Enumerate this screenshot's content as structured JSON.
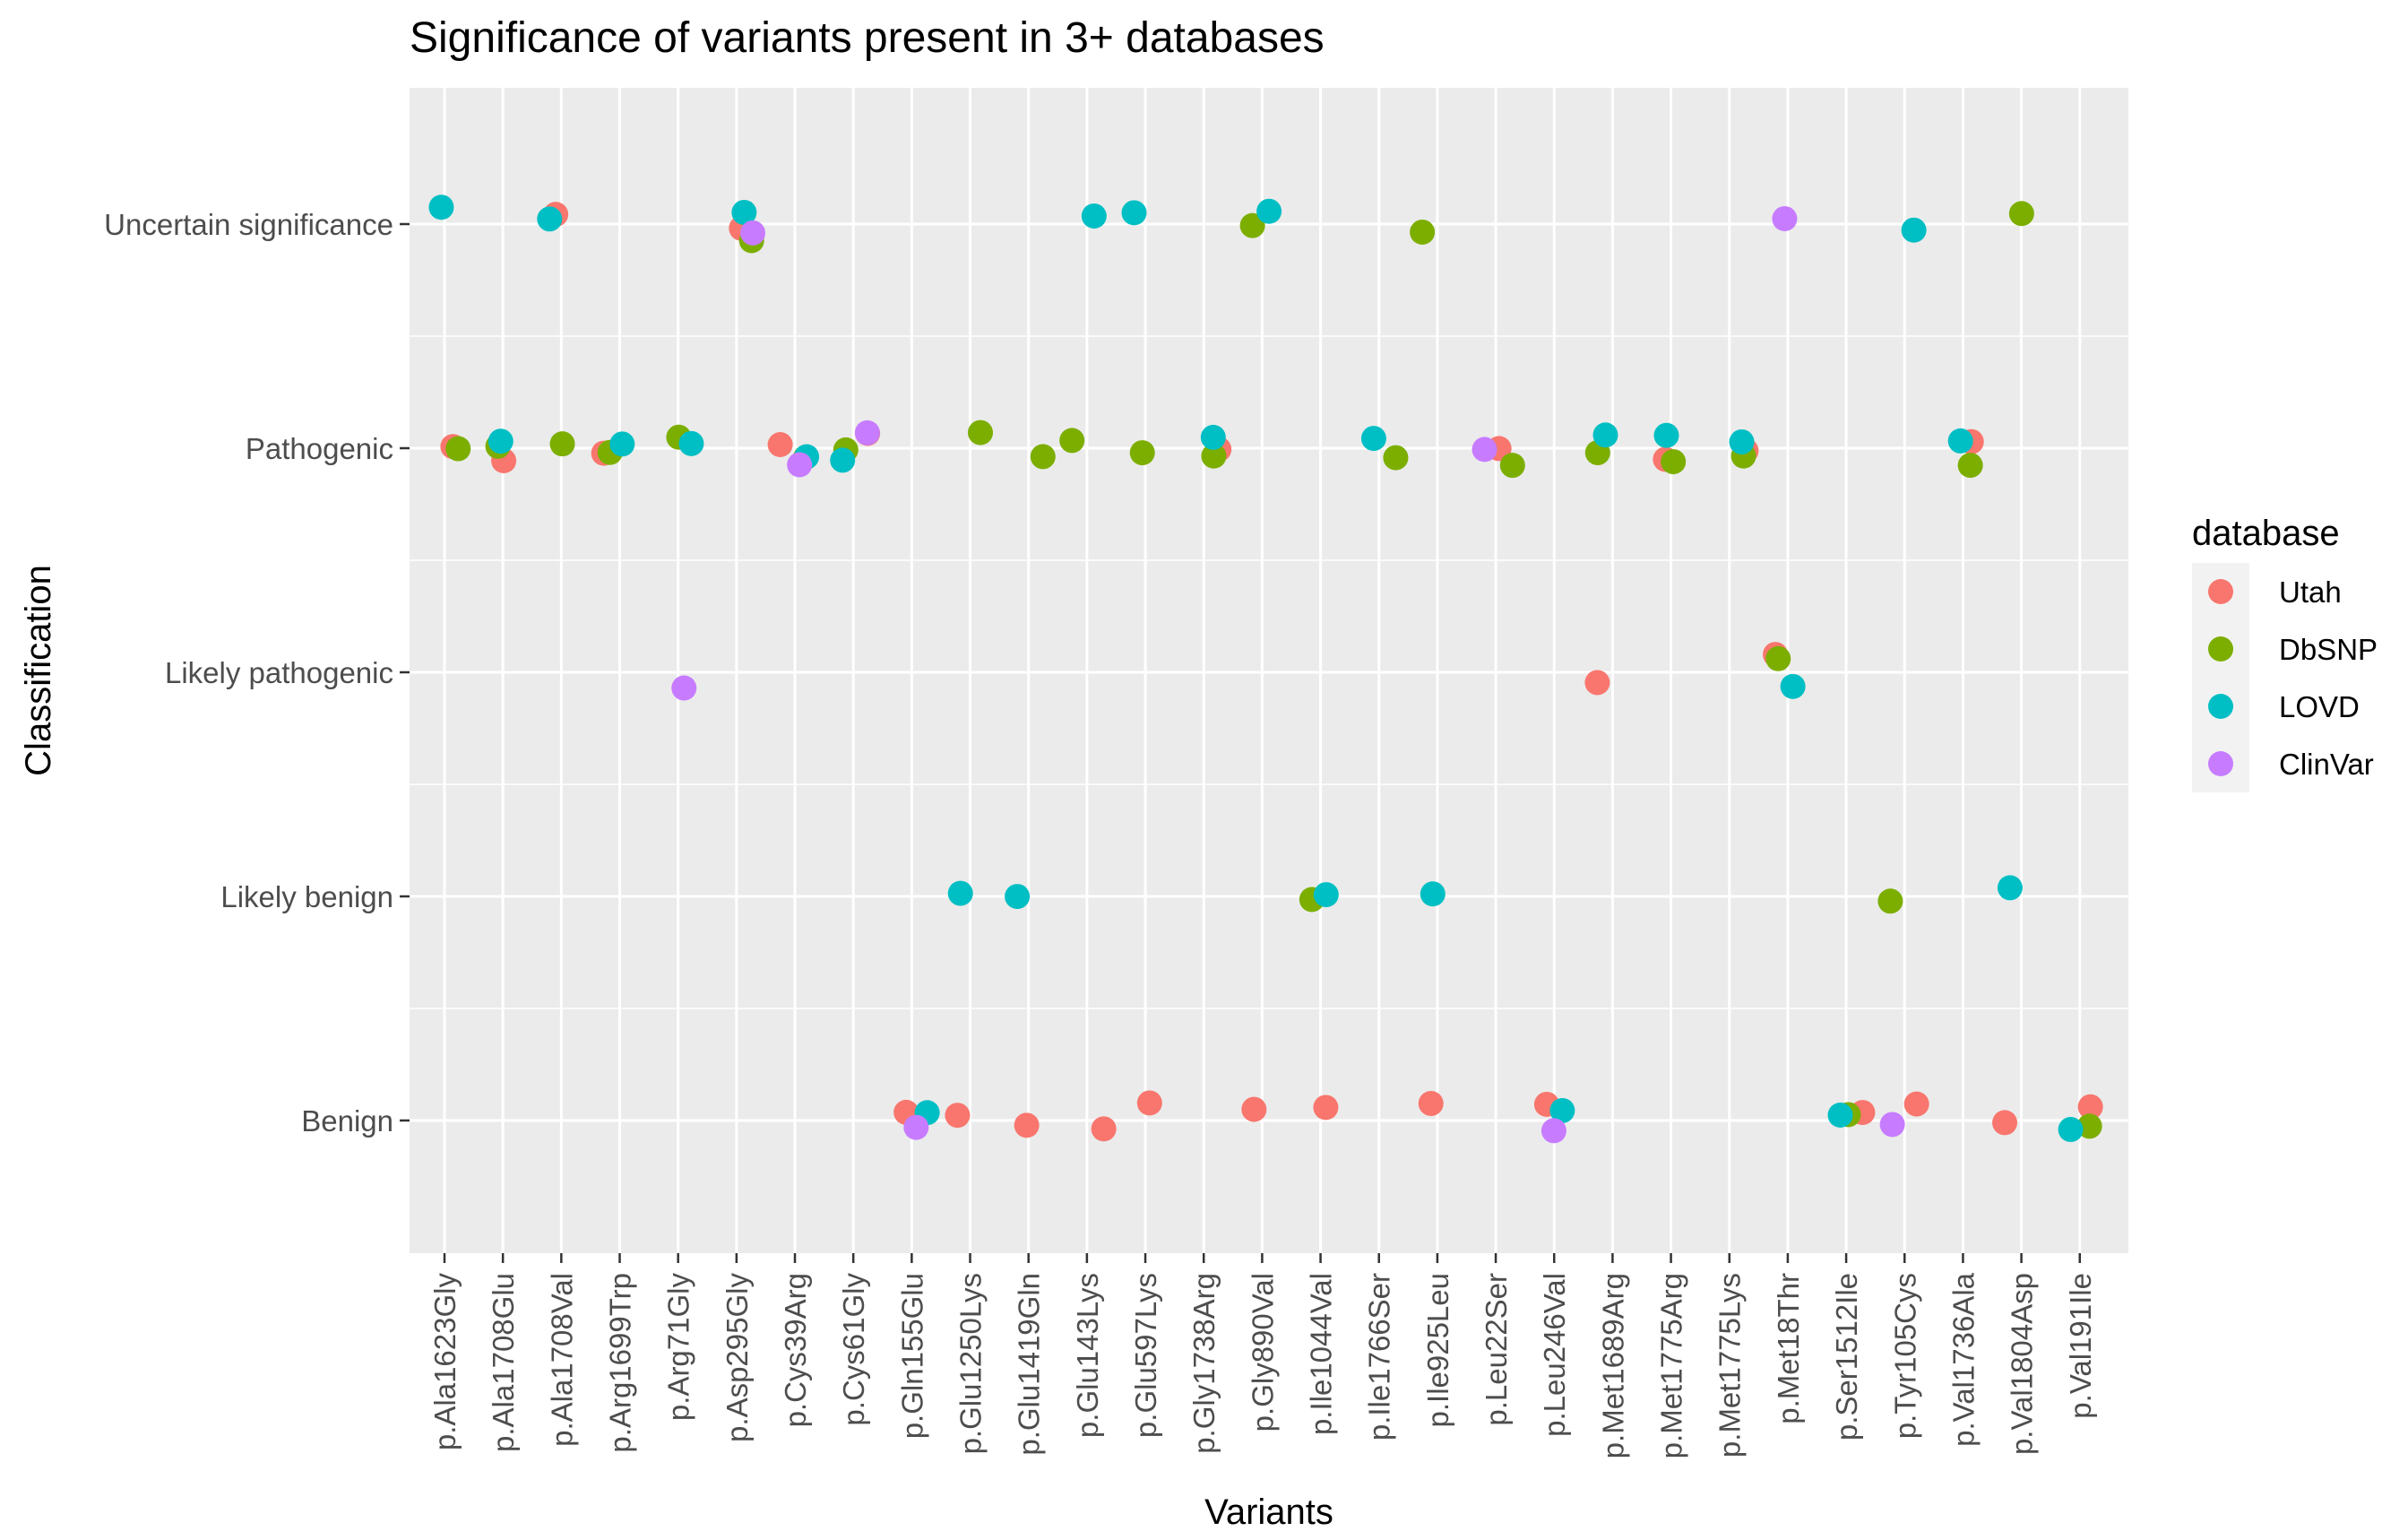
{
  "chart_data": {
    "type": "scatter",
    "title": "Significance of variants present in 3+ databases",
    "xlabel": "Variants",
    "ylabel": "Classification",
    "categories": [
      "p.Ala1623Gly",
      "p.Ala1708Glu",
      "p.Ala1708Val",
      "p.Arg1699Trp",
      "p.Arg71Gly",
      "p.Asp295Gly",
      "p.Cys39Arg",
      "p.Cys61Gly",
      "p.Gln155Glu",
      "p.Glu1250Lys",
      "p.Glu1419Gln",
      "p.Glu143Lys",
      "p.Glu597Lys",
      "p.Gly1738Arg",
      "p.Gly890Val",
      "p.Ile1044Val",
      "p.Ile1766Ser",
      "p.Ile925Leu",
      "p.Leu22Ser",
      "p.Leu246Val",
      "p.Met1689Arg",
      "p.Met1775Arg",
      "p.Met1775Lys",
      "p.Met18Thr",
      "p.Ser1512Ile",
      "p.Tyr105Cys",
      "p.Val1736Ala",
      "p.Val1804Asp",
      "p.Val191Ile"
    ],
    "y_levels": [
      "Benign",
      "Likely benign",
      "Likely pathogenic",
      "Pathogenic",
      "Uncertain significance"
    ],
    "legend_title": "database",
    "legend_position": "right",
    "grid": true,
    "series": [
      {
        "name": "Utah",
        "color": "#F8766D",
        "points": [
          [
            "p.Ala1623Gly",
            "Pathogenic"
          ],
          [
            "p.Ala1708Glu",
            "Pathogenic"
          ],
          [
            "p.Ala1708Val",
            "Uncertain significance"
          ],
          [
            "p.Arg1699Trp",
            "Pathogenic"
          ],
          [
            "p.Asp295Gly",
            "Uncertain significance"
          ],
          [
            "p.Cys39Arg",
            "Pathogenic"
          ],
          [
            "p.Cys61Gly",
            "Pathogenic"
          ],
          [
            "p.Gln155Glu",
            "Benign"
          ],
          [
            "p.Glu1250Lys",
            "Benign"
          ],
          [
            "p.Glu1419Gln",
            "Benign"
          ],
          [
            "p.Glu143Lys",
            "Benign"
          ],
          [
            "p.Glu597Lys",
            "Benign"
          ],
          [
            "p.Gly1738Arg",
            "Pathogenic"
          ],
          [
            "p.Gly890Val",
            "Benign"
          ],
          [
            "p.Ile1044Val",
            "Benign"
          ],
          [
            "p.Ile925Leu",
            "Benign"
          ],
          [
            "p.Leu22Ser",
            "Pathogenic"
          ],
          [
            "p.Leu246Val",
            "Benign"
          ],
          [
            "p.Met1689Arg",
            "Likely pathogenic"
          ],
          [
            "p.Met1775Arg",
            "Pathogenic"
          ],
          [
            "p.Met1775Lys",
            "Pathogenic"
          ],
          [
            "p.Met18Thr",
            "Likely pathogenic"
          ],
          [
            "p.Ser1512Ile",
            "Benign"
          ],
          [
            "p.Tyr105Cys",
            "Benign"
          ],
          [
            "p.Val1736Ala",
            "Pathogenic"
          ],
          [
            "p.Val1804Asp",
            "Benign"
          ],
          [
            "p.Val191Ile",
            "Benign"
          ]
        ]
      },
      {
        "name": "DbSNP",
        "color": "#7CAE00",
        "points": [
          [
            "p.Ala1623Gly",
            "Pathogenic"
          ],
          [
            "p.Ala1708Glu",
            "Pathogenic"
          ],
          [
            "p.Ala1708Val",
            "Pathogenic"
          ],
          [
            "p.Arg1699Trp",
            "Pathogenic"
          ],
          [
            "p.Arg71Gly",
            "Pathogenic"
          ],
          [
            "p.Asp295Gly",
            "Uncertain significance"
          ],
          [
            "p.Cys39Arg",
            "Pathogenic"
          ],
          [
            "p.Cys61Gly",
            "Pathogenic"
          ],
          [
            "p.Glu1250Lys",
            "Pathogenic"
          ],
          [
            "p.Glu1419Gln",
            "Pathogenic"
          ],
          [
            "p.Glu143Lys",
            "Pathogenic"
          ],
          [
            "p.Glu597Lys",
            "Pathogenic"
          ],
          [
            "p.Gly1738Arg",
            "Pathogenic"
          ],
          [
            "p.Gly890Val",
            "Uncertain significance"
          ],
          [
            "p.Ile1044Val",
            "Likely benign"
          ],
          [
            "p.Ile1766Ser",
            "Pathogenic"
          ],
          [
            "p.Ile925Leu",
            "Uncertain significance"
          ],
          [
            "p.Leu22Ser",
            "Pathogenic"
          ],
          [
            "p.Met1689Arg",
            "Pathogenic"
          ],
          [
            "p.Met1775Arg",
            "Pathogenic"
          ],
          [
            "p.Met1775Lys",
            "Pathogenic"
          ],
          [
            "p.Met18Thr",
            "Likely pathogenic"
          ],
          [
            "p.Ser1512Ile",
            "Benign"
          ],
          [
            "p.Tyr105Cys",
            "Likely benign"
          ],
          [
            "p.Val1736Ala",
            "Pathogenic"
          ],
          [
            "p.Val1804Asp",
            "Uncertain significance"
          ],
          [
            "p.Val191Ile",
            "Benign"
          ]
        ]
      },
      {
        "name": "LOVD",
        "color": "#00BFC4",
        "points": [
          [
            "p.Ala1623Gly",
            "Uncertain significance"
          ],
          [
            "p.Ala1708Glu",
            "Pathogenic"
          ],
          [
            "p.Ala1708Val",
            "Uncertain significance"
          ],
          [
            "p.Arg1699Trp",
            "Pathogenic"
          ],
          [
            "p.Arg71Gly",
            "Pathogenic"
          ],
          [
            "p.Asp295Gly",
            "Uncertain significance"
          ],
          [
            "p.Cys39Arg",
            "Pathogenic"
          ],
          [
            "p.Cys61Gly",
            "Pathogenic"
          ],
          [
            "p.Gln155Glu",
            "Benign"
          ],
          [
            "p.Glu1250Lys",
            "Likely benign"
          ],
          [
            "p.Glu1419Gln",
            "Likely benign"
          ],
          [
            "p.Glu143Lys",
            "Uncertain significance"
          ],
          [
            "p.Glu597Lys",
            "Uncertain significance"
          ],
          [
            "p.Gly1738Arg",
            "Pathogenic"
          ],
          [
            "p.Gly890Val",
            "Uncertain significance"
          ],
          [
            "p.Ile1044Val",
            "Likely benign"
          ],
          [
            "p.Ile1766Ser",
            "Pathogenic"
          ],
          [
            "p.Ile925Leu",
            "Likely benign"
          ],
          [
            "p.Leu246Val",
            "Benign"
          ],
          [
            "p.Met1689Arg",
            "Pathogenic"
          ],
          [
            "p.Met1775Arg",
            "Pathogenic"
          ],
          [
            "p.Met1775Lys",
            "Pathogenic"
          ],
          [
            "p.Met18Thr",
            "Likely pathogenic"
          ],
          [
            "p.Ser1512Ile",
            "Benign"
          ],
          [
            "p.Tyr105Cys",
            "Uncertain significance"
          ],
          [
            "p.Val1736Ala",
            "Pathogenic"
          ],
          [
            "p.Val1804Asp",
            "Likely benign"
          ],
          [
            "p.Val191Ile",
            "Benign"
          ]
        ]
      },
      {
        "name": "ClinVar",
        "color": "#C77CFF",
        "points": [
          [
            "p.Arg71Gly",
            "Likely pathogenic"
          ],
          [
            "p.Asp295Gly",
            "Uncertain significance"
          ],
          [
            "p.Cys39Arg",
            "Pathogenic"
          ],
          [
            "p.Cys61Gly",
            "Pathogenic"
          ],
          [
            "p.Gln155Glu",
            "Benign"
          ],
          [
            "p.Leu22Ser",
            "Pathogenic"
          ],
          [
            "p.Leu246Val",
            "Benign"
          ],
          [
            "p.Met18Thr",
            "Uncertain significance"
          ],
          [
            "p.Tyr105Cys",
            "Benign"
          ]
        ]
      }
    ]
  }
}
